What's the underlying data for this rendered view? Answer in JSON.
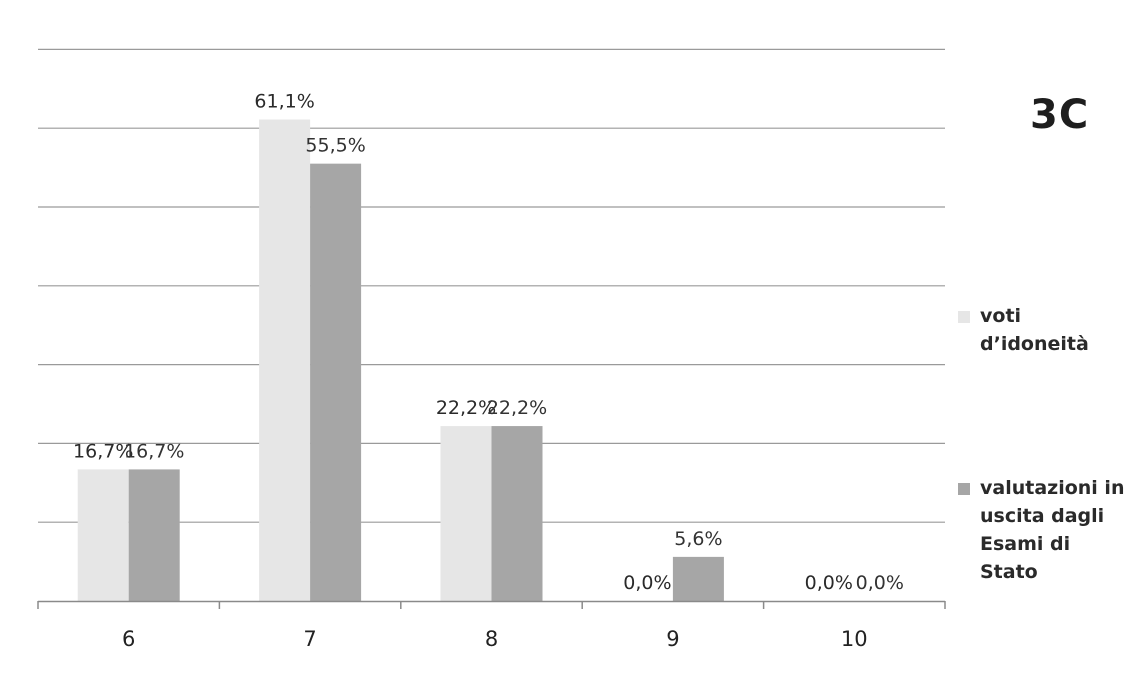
{
  "chart_data": {
    "type": "bar",
    "title": "3C",
    "categories": [
      "6",
      "7",
      "8",
      "9",
      "10"
    ],
    "series": [
      {
        "name": "voti d’idoneità",
        "values": [
          16.7,
          61.1,
          22.2,
          0.0,
          0.0
        ],
        "labels": [
          "16,7%",
          "61,1%",
          "22,2%",
          "0,0%",
          "0,0%"
        ],
        "color": "#e6e6e6"
      },
      {
        "name": "valutazioni in uscita dagli Esami di Stato",
        "values": [
          16.7,
          55.5,
          22.2,
          5.6,
          0.0
        ],
        "labels": [
          "16,7%",
          "55,5%",
          "22,2%",
          "5,6%",
          "0,0%"
        ],
        "color": "#a6a6a6"
      }
    ],
    "ylim": [
      0,
      70
    ],
    "grid": true,
    "legend": "right"
  }
}
